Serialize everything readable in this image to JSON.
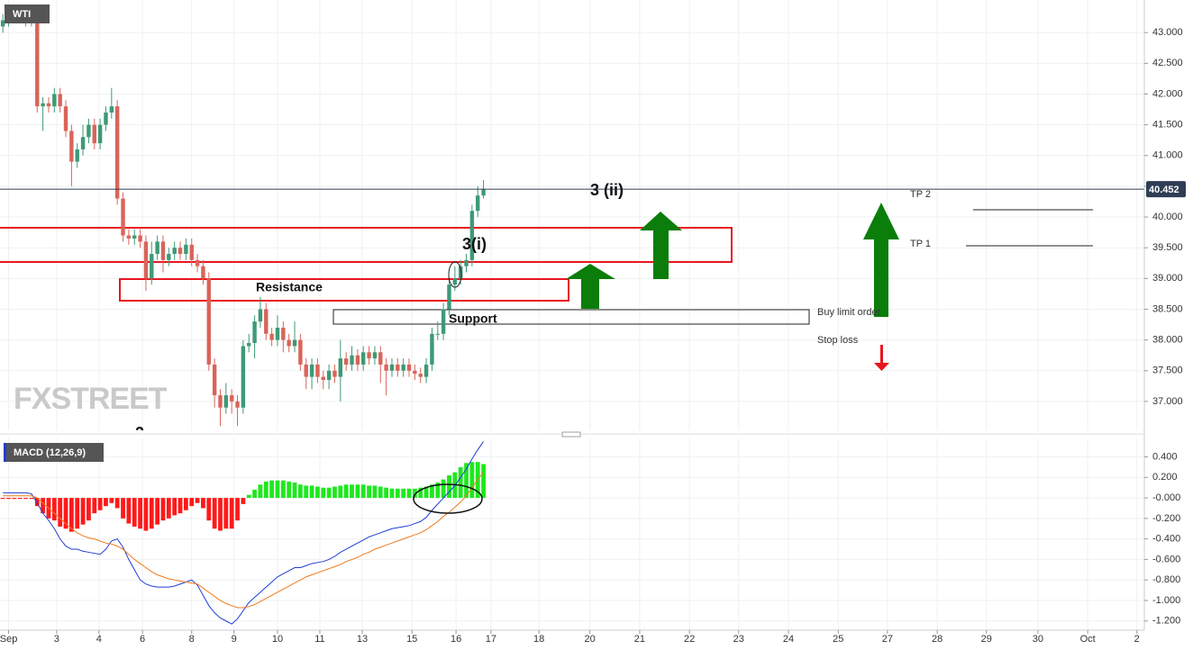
{
  "chart_data": [
    {
      "type": "candlestick",
      "title": "WTI",
      "x": [
        0,
        1,
        2,
        3,
        4,
        5,
        6,
        7,
        8,
        9,
        10,
        11,
        12,
        13,
        14,
        15,
        16,
        17,
        18,
        19,
        20,
        21,
        22,
        23,
        24,
        25,
        26,
        27,
        28,
        29,
        30,
        31,
        32,
        33,
        34,
        35,
        36,
        37,
        38,
        39,
        40,
        41,
        42,
        43,
        44,
        45,
        46,
        47,
        48,
        49,
        50,
        51,
        52,
        53,
        54,
        55,
        56,
        57,
        58,
        59,
        60,
        61,
        62,
        63,
        64,
        65,
        66,
        67,
        68,
        69,
        70,
        71,
        72,
        73,
        74,
        75,
        76,
        77,
        78,
        79,
        80,
        81,
        82,
        83,
        84
      ],
      "open": [
        43.1,
        43.2,
        43.3,
        43.25,
        43.3,
        43.2,
        43.3,
        41.8,
        41.85,
        41.8,
        42.0,
        41.8,
        41.4,
        40.9,
        41.1,
        41.3,
        41.5,
        41.2,
        41.5,
        41.7,
        41.8,
        40.3,
        39.7,
        39.65,
        39.7,
        39.6,
        39.0,
        39.4,
        39.6,
        39.3,
        39.4,
        39.5,
        39.4,
        39.55,
        39.3,
        39.2,
        39.0,
        37.6,
        37.1,
        36.9,
        37.1,
        37.0,
        36.9,
        37.9,
        37.95,
        38.3,
        38.5,
        38.1,
        38.0,
        38.2,
        38.0,
        37.9,
        38.0,
        37.6,
        37.4,
        37.6,
        37.4,
        37.35,
        37.5,
        37.4,
        37.7,
        37.6,
        37.75,
        37.6,
        37.8,
        37.7,
        37.8,
        37.6,
        37.5,
        37.6,
        37.5,
        37.6,
        37.5,
        37.45,
        37.4,
        37.6,
        38.1,
        38.1,
        38.5,
        38.9,
        39.0,
        39.2,
        39.3,
        40.1,
        40.35
      ],
      "high": [
        43.3,
        43.4,
        43.4,
        43.4,
        43.4,
        43.4,
        43.4,
        41.95,
        41.95,
        42.1,
        42.1,
        41.9,
        41.5,
        41.2,
        41.5,
        41.6,
        41.6,
        41.6,
        41.8,
        42.1,
        41.9,
        40.4,
        39.8,
        39.8,
        39.8,
        39.7,
        39.6,
        39.7,
        39.7,
        39.5,
        39.6,
        39.6,
        39.65,
        39.65,
        39.4,
        39.3,
        39.1,
        37.7,
        37.2,
        37.3,
        37.2,
        37.1,
        38.0,
        38.1,
        38.4,
        38.7,
        38.6,
        38.2,
        38.4,
        38.3,
        38.1,
        38.3,
        38.1,
        37.7,
        37.7,
        37.7,
        37.5,
        37.6,
        37.6,
        38.0,
        37.8,
        37.9,
        37.85,
        37.9,
        37.9,
        37.9,
        37.9,
        37.7,
        37.7,
        37.7,
        37.7,
        37.7,
        37.6,
        37.55,
        37.7,
        38.2,
        38.3,
        38.6,
        39.0,
        39.2,
        39.3,
        39.4,
        40.2,
        40.5,
        40.6
      ],
      "low": [
        43.0,
        43.1,
        43.15,
        43.15,
        43.1,
        43.1,
        41.7,
        41.4,
        41.7,
        41.7,
        41.7,
        41.3,
        40.5,
        40.8,
        41.0,
        41.2,
        41.1,
        41.1,
        41.4,
        41.6,
        40.2,
        39.6,
        39.55,
        39.55,
        39.5,
        38.8,
        38.9,
        39.3,
        39.1,
        39.2,
        39.3,
        39.3,
        39.3,
        39.2,
        39.1,
        38.9,
        37.5,
        36.9,
        36.6,
        36.8,
        36.8,
        36.6,
        36.8,
        37.8,
        37.7,
        38.2,
        38.0,
        37.9,
        37.9,
        37.8,
        37.8,
        37.8,
        37.5,
        37.2,
        37.2,
        37.3,
        37.2,
        37.2,
        37.3,
        37.0,
        37.5,
        37.5,
        37.5,
        37.5,
        37.6,
        37.6,
        37.3,
        37.1,
        37.4,
        37.4,
        37.4,
        37.4,
        37.35,
        37.3,
        37.3,
        37.5,
        38.0,
        38.0,
        38.4,
        38.8,
        38.9,
        39.1,
        39.2,
        40.0,
        40.3
      ],
      "close": [
        43.2,
        43.3,
        43.25,
        43.3,
        43.2,
        43.3,
        41.8,
        41.85,
        41.8,
        42.0,
        41.8,
        41.4,
        40.9,
        41.1,
        41.3,
        41.5,
        41.2,
        41.5,
        41.7,
        41.8,
        40.3,
        39.7,
        39.65,
        39.7,
        39.6,
        39.0,
        39.4,
        39.6,
        39.3,
        39.4,
        39.5,
        39.4,
        39.55,
        39.3,
        39.2,
        39.0,
        37.6,
        37.1,
        36.9,
        37.1,
        37.0,
        36.9,
        37.9,
        37.95,
        38.3,
        38.5,
        38.1,
        38.0,
        38.2,
        38.0,
        37.9,
        38.0,
        37.6,
        37.4,
        37.6,
        37.4,
        37.35,
        37.5,
        37.4,
        37.7,
        37.6,
        37.75,
        37.6,
        37.8,
        37.7,
        37.8,
        37.6,
        37.5,
        37.6,
        37.5,
        37.6,
        37.5,
        37.45,
        37.4,
        37.6,
        38.1,
        38.1,
        38.5,
        38.9,
        39.0,
        39.2,
        39.3,
        40.1,
        40.35,
        40.45
      ],
      "up_color": "#3d9a76",
      "down_color": "#d9645a",
      "last_price": 40.452,
      "last_price_color": "#2f3d55",
      "xlim": [
        -0.5,
        199.5
      ],
      "xticks": [
        {
          "value": 1.0,
          "label": "Sep"
        },
        {
          "value": 9.4,
          "label": "3"
        },
        {
          "value": 16.8,
          "label": "4"
        },
        {
          "value": 24.4,
          "label": "6"
        },
        {
          "value": 33.0,
          "label": "8"
        },
        {
          "value": 40.4,
          "label": "9"
        },
        {
          "value": 48.0,
          "label": "10"
        },
        {
          "value": 55.4,
          "label": "11"
        },
        {
          "value": 62.8,
          "label": "13"
        },
        {
          "value": 71.5,
          "label": "15"
        },
        {
          "value": 79.2,
          "label": "16"
        },
        {
          "value": 85.3,
          "label": "17"
        },
        {
          "value": 93.7,
          "label": "18"
        },
        {
          "value": 102.6,
          "label": "20"
        },
        {
          "value": 111.3,
          "label": "21"
        },
        {
          "value": 120.0,
          "label": "22"
        },
        {
          "value": 128.6,
          "label": "23"
        },
        {
          "value": 137.3,
          "label": "24"
        },
        {
          "value": 146.0,
          "label": "25"
        },
        {
          "value": 154.6,
          "label": "27"
        },
        {
          "value": 163.3,
          "label": "28"
        },
        {
          "value": 171.9,
          "label": "29"
        },
        {
          "value": 180.9,
          "label": "30"
        },
        {
          "value": 189.6,
          "label": "Oct"
        },
        {
          "value": 198.2,
          "label": "2"
        }
      ],
      "ylim": [
        36.53,
        43.53
      ],
      "yticks": [
        {
          "value": 37,
          "label": "37.000"
        },
        {
          "value": 37.5,
          "label": "37.500"
        },
        {
          "value": 38,
          "label": "38.000"
        },
        {
          "value": 38.5,
          "label": "38.500"
        },
        {
          "value": 39,
          "label": "39.000"
        },
        {
          "value": 39.5,
          "label": "39.500"
        },
        {
          "value": 40,
          "label": "40.000"
        },
        {
          "value": 40.5,
          "label": "40.500"
        },
        {
          "value": 41,
          "label": "41.000"
        },
        {
          "value": 41.5,
          "label": "41.500"
        },
        {
          "value": 42,
          "label": "42.000"
        },
        {
          "value": 42.5,
          "label": "42.500"
        },
        {
          "value": 43,
          "label": "43.000"
        }
      ],
      "grid": true,
      "annotations": [
        "3 (ii)",
        "3(i)",
        "Resistance",
        "Support",
        "Buy limit order",
        "Stop loss",
        "TP 2",
        "TP 1",
        "2"
      ],
      "watermark": "FXSTREET"
    },
    {
      "type": "macd",
      "title": "MACD (12,26,9)",
      "histogram": {
        "up_color": "#1ee81e",
        "down_color": "#ff1a1a",
        "values": [
          -0.01,
          -0.01,
          -0.01,
          -0.01,
          -0.01,
          -0.01,
          -0.08,
          -0.15,
          -0.2,
          -0.22,
          -0.28,
          -0.3,
          -0.33,
          -0.3,
          -0.26,
          -0.22,
          -0.15,
          -0.12,
          -0.08,
          -0.05,
          -0.1,
          -0.2,
          -0.25,
          -0.28,
          -0.3,
          -0.32,
          -0.3,
          -0.26,
          -0.22,
          -0.2,
          -0.17,
          -0.15,
          -0.12,
          -0.08,
          -0.05,
          -0.1,
          -0.22,
          -0.3,
          -0.32,
          -0.3,
          -0.3,
          -0.22,
          -0.06,
          0.03,
          0.08,
          0.13,
          0.16,
          0.17,
          0.17,
          0.17,
          0.16,
          0.15,
          0.13,
          0.12,
          0.12,
          0.11,
          0.1,
          0.1,
          0.11,
          0.12,
          0.13,
          0.13,
          0.13,
          0.13,
          0.12,
          0.12,
          0.11,
          0.1,
          0.09,
          0.09,
          0.09,
          0.09,
          0.09,
          0.1,
          0.11,
          0.13,
          0.15,
          0.18,
          0.22,
          0.25,
          0.3,
          0.34,
          0.35,
          0.35,
          0.33
        ]
      },
      "series": [
        {
          "color": "#1f3fd6",
          "values": [
            0.05,
            0.05,
            0.05,
            0.05,
            0.05,
            0.04,
            -0.05,
            -0.15,
            -0.22,
            -0.3,
            -0.4,
            -0.47,
            -0.5,
            -0.5,
            -0.52,
            -0.53,
            -0.54,
            -0.55,
            -0.5,
            -0.42,
            -0.4,
            -0.48,
            -0.6,
            -0.7,
            -0.8,
            -0.84,
            -0.86,
            -0.87,
            -0.87,
            -0.87,
            -0.86,
            -0.84,
            -0.82,
            -0.8,
            -0.85,
            -0.95,
            -1.05,
            -1.12,
            -1.17,
            -1.2,
            -1.23,
            -1.18,
            -1.1,
            -1.02,
            -0.97,
            -0.92,
            -0.87,
            -0.82,
            -0.77,
            -0.74,
            -0.71,
            -0.68,
            -0.68,
            -0.66,
            -0.64,
            -0.63,
            -0.62,
            -0.6,
            -0.57,
            -0.53,
            -0.5,
            -0.47,
            -0.44,
            -0.41,
            -0.38,
            -0.36,
            -0.34,
            -0.32,
            -0.3,
            -0.29,
            -0.28,
            -0.27,
            -0.25,
            -0.23,
            -0.19,
            -0.12,
            -0.06,
            0.0,
            0.06,
            0.12,
            0.2,
            0.28,
            0.38,
            0.47,
            0.55
          ]
        },
        {
          "color": "#f07a1c",
          "values": [
            0.02,
            0.02,
            0.02,
            0.02,
            0.02,
            0.02,
            0.0,
            -0.05,
            -0.1,
            -0.15,
            -0.2,
            -0.25,
            -0.3,
            -0.34,
            -0.37,
            -0.39,
            -0.4,
            -0.42,
            -0.44,
            -0.45,
            -0.47,
            -0.5,
            -0.55,
            -0.6,
            -0.64,
            -0.68,
            -0.72,
            -0.75,
            -0.77,
            -0.79,
            -0.8,
            -0.81,
            -0.82,
            -0.83,
            -0.84,
            -0.88,
            -0.92,
            -0.96,
            -1.0,
            -1.03,
            -1.05,
            -1.07,
            -1.07,
            -1.06,
            -1.04,
            -1.01,
            -0.98,
            -0.95,
            -0.92,
            -0.89,
            -0.86,
            -0.83,
            -0.8,
            -0.77,
            -0.75,
            -0.73,
            -0.71,
            -0.69,
            -0.67,
            -0.65,
            -0.62,
            -0.6,
            -0.58,
            -0.55,
            -0.53,
            -0.5,
            -0.48,
            -0.46,
            -0.44,
            -0.42,
            -0.4,
            -0.38,
            -0.36,
            -0.34,
            -0.31,
            -0.27,
            -0.23,
            -0.18,
            -0.14,
            -0.09,
            -0.04,
            0.02,
            0.1,
            0.18,
            0.25
          ]
        }
      ],
      "ylim": [
        -1.29,
        0.58
      ],
      "yticks": [
        {
          "value": -1.2,
          "label": "-1.200"
        },
        {
          "value": -1.0,
          "label": "-1.000"
        },
        {
          "value": -0.8,
          "label": "-0.800"
        },
        {
          "value": -0.6,
          "label": "-0.600"
        },
        {
          "value": -0.4,
          "label": "-0.400"
        },
        {
          "value": -0.2,
          "label": "-0.200"
        },
        {
          "value": 0,
          "label": "-0.000"
        },
        {
          "value": 0.2,
          "label": "0.200"
        },
        {
          "value": 0.4,
          "label": "0.400"
        }
      ],
      "grid": true
    }
  ]
}
